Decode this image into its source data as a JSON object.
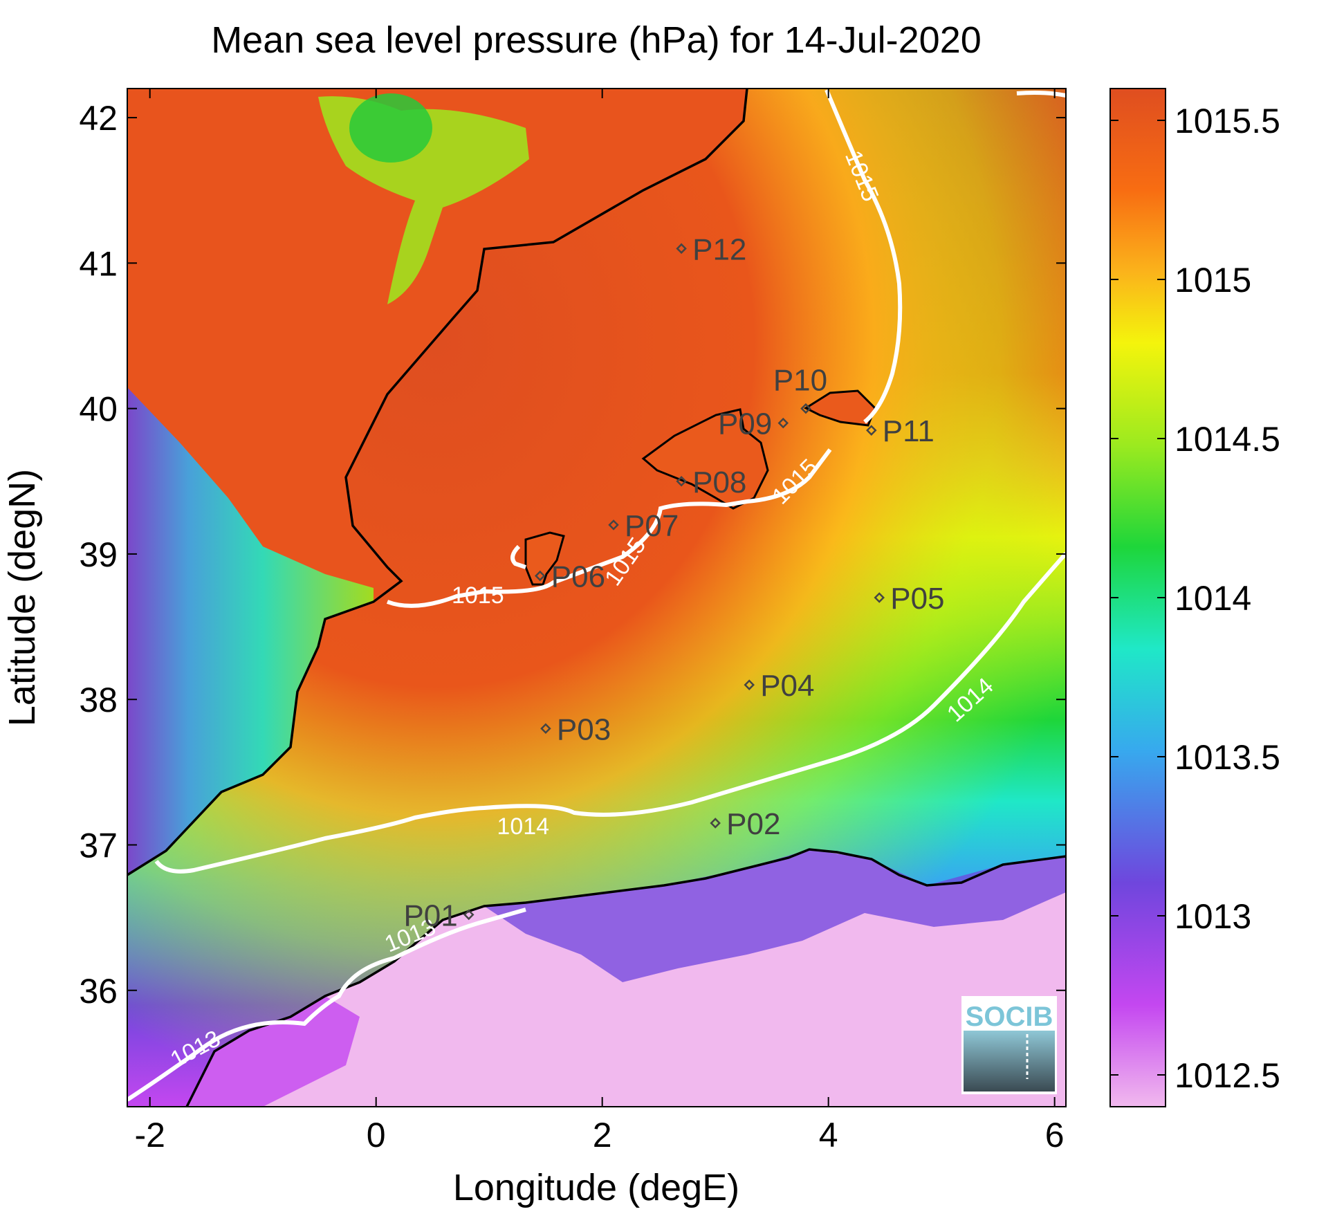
{
  "title": "Mean sea level pressure (hPa) for 14-Jul-2020",
  "axes": {
    "xlabel": "Longitude (degE)",
    "ylabel": "Latitude (degN)",
    "xlim": [
      -2.2,
      6.1
    ],
    "ylim": [
      35.2,
      42.2
    ],
    "xticks": [
      -2,
      0,
      2,
      4,
      6
    ],
    "yticks": [
      36,
      37,
      38,
      39,
      40,
      41,
      42
    ],
    "xticklabels": [
      "-2",
      "0",
      "2",
      "4",
      "6"
    ],
    "yticklabels": [
      "36",
      "37",
      "38",
      "39",
      "40",
      "41",
      "42"
    ]
  },
  "colorbar": {
    "ticks": [
      1012.5,
      1013,
      1013.5,
      1014,
      1014.5,
      1015,
      1015.5
    ],
    "ticklabels": [
      "1012.5",
      "1013",
      "1013.5",
      "1014",
      "1014.5",
      "1015",
      "1015.5"
    ],
    "range": [
      1012.4,
      1015.6
    ],
    "colors": [
      "#f1b9ee",
      "#c447f0",
      "#6f46dd",
      "#37a9ee",
      "#1fe8c7",
      "#1ed63a",
      "#9cea1f",
      "#f4f40c",
      "#fbb31b",
      "#f86d12",
      "#df4e20"
    ]
  },
  "contour_labels": [
    {
      "text": "1015",
      "lon": 0.9,
      "lat": 38.72,
      "rot": 0
    },
    {
      "text": "1015",
      "lon": 4.3,
      "lat": 41.6,
      "rot": 68
    },
    {
      "text": "1015",
      "lon": 3.7,
      "lat": 39.5,
      "rot": -45
    },
    {
      "text": "1015",
      "lon": 2.2,
      "lat": 38.95,
      "rot": -55
    },
    {
      "text": "1014",
      "lon": 1.3,
      "lat": 37.13,
      "rot": 0
    },
    {
      "text": "1014",
      "lon": 5.25,
      "lat": 38.0,
      "rot": -42
    },
    {
      "text": "1013",
      "lon": 0.3,
      "lat": 36.38,
      "rot": -22
    },
    {
      "text": "1013",
      "lon": -1.6,
      "lat": 35.6,
      "rot": -28
    }
  ],
  "stations": [
    {
      "id": "P01",
      "lon": 0.82,
      "lat": 36.52,
      "label_side": "left"
    },
    {
      "id": "P02",
      "lon": 3.0,
      "lat": 37.15,
      "label_side": "right"
    },
    {
      "id": "P03",
      "lon": 1.5,
      "lat": 37.8,
      "label_side": "right"
    },
    {
      "id": "P04",
      "lon": 3.3,
      "lat": 38.1,
      "label_side": "right"
    },
    {
      "id": "P05",
      "lon": 4.45,
      "lat": 38.7,
      "label_side": "right"
    },
    {
      "id": "P06",
      "lon": 1.45,
      "lat": 38.85,
      "label_side": "right"
    },
    {
      "id": "P07",
      "lon": 2.1,
      "lat": 39.2,
      "label_side": "right"
    },
    {
      "id": "P08",
      "lon": 2.7,
      "lat": 39.5,
      "label_side": "right"
    },
    {
      "id": "P09",
      "lon": 3.6,
      "lat": 39.9,
      "label_side": "left"
    },
    {
      "id": "P10",
      "lon": 3.8,
      "lat": 40.0,
      "label_side": "above"
    },
    {
      "id": "P11",
      "lon": 4.38,
      "lat": 39.85,
      "label_side": "right"
    },
    {
      "id": "P12",
      "lon": 2.7,
      "lat": 41.1,
      "label_side": "right"
    }
  ],
  "logo": {
    "text": "SOCIB"
  }
}
